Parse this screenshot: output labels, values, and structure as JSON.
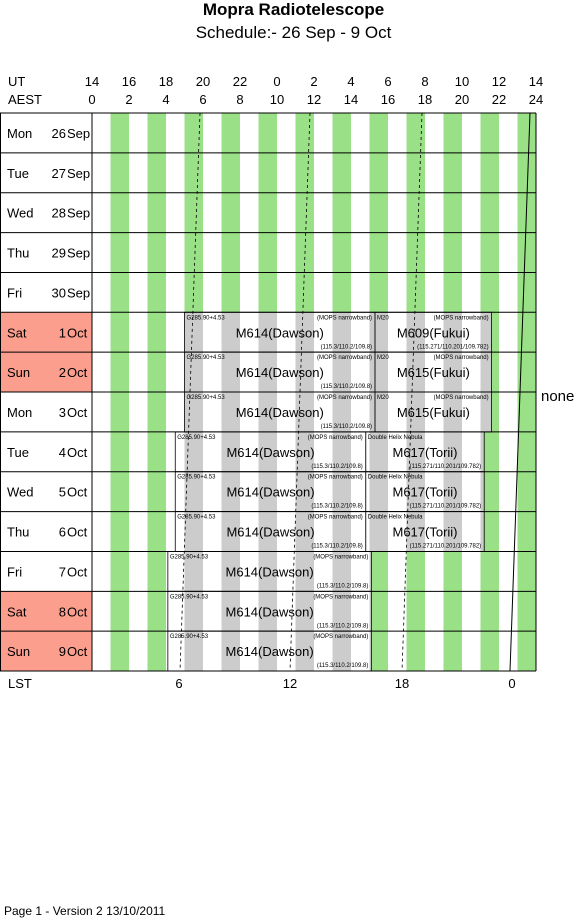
{
  "header": {
    "title": "Mopra Radiotelescope",
    "subtitle": "Schedule:- 26 Sep - 9  Oct",
    "ut_label": "UT",
    "aest_label": "AEST",
    "lst_label": "LST"
  },
  "ut_ticks": [
    "14",
    "16",
    "18",
    "20",
    "22",
    "0",
    "2",
    "4",
    "6",
    "8",
    "10",
    "12",
    "14"
  ],
  "aest_ticks": [
    "0",
    "2",
    "4",
    "6",
    "8",
    "10",
    "12",
    "14",
    "16",
    "18",
    "20",
    "22",
    "24"
  ],
  "lst_ticks": [
    "6",
    "12",
    "18",
    "0"
  ],
  "days": [
    {
      "dow": "Mon",
      "day": "26",
      "month": "Sep",
      "weekend": false
    },
    {
      "dow": "Tue",
      "day": "27",
      "month": "Sep",
      "weekend": false
    },
    {
      "dow": "Wed",
      "day": "28",
      "month": "Sep",
      "weekend": false
    },
    {
      "dow": "Thu",
      "day": "29",
      "month": "Sep",
      "weekend": false
    },
    {
      "dow": "Fri",
      "day": "30",
      "month": "Sep",
      "weekend": false
    },
    {
      "dow": "Sat",
      "day": "1",
      "month": "Oct",
      "weekend": true
    },
    {
      "dow": "Sun",
      "day": "2",
      "month": "Oct",
      "weekend": true
    },
    {
      "dow": "Mon",
      "day": "3",
      "month": "Oct",
      "weekend": false
    },
    {
      "dow": "Tue",
      "day": "4",
      "month": "Oct",
      "weekend": false
    },
    {
      "dow": "Wed",
      "day": "5",
      "month": "Oct",
      "weekend": false
    },
    {
      "dow": "Thu",
      "day": "6",
      "month": "Oct",
      "weekend": false
    },
    {
      "dow": "Fri",
      "day": "7",
      "month": "Oct",
      "weekend": false
    },
    {
      "dow": "Sat",
      "day": "8",
      "month": "Oct",
      "weekend": true
    },
    {
      "dow": "Sun",
      "day": "9",
      "month": "Oct",
      "weekend": true
    }
  ],
  "blocks": [
    {
      "row": 5,
      "start": 5,
      "end": 15.3,
      "source": "G285.90+4.53",
      "mode": "(MOPS narrowband)",
      "project": "M614(Dawson)",
      "freq": "(115.3/110.2/109.8)"
    },
    {
      "row": 5,
      "start": 15.3,
      "end": 21.6,
      "source": "M20",
      "mode": "(MOPS narrowband)",
      "project": "M609(Fukui)",
      "freq": "(115.271/110.201/109.782)"
    },
    {
      "row": 6,
      "start": 5,
      "end": 15.3,
      "source": "G285.90+4.53",
      "mode": "(MOPS narrowband)",
      "project": "M614(Dawson)",
      "freq": "(115.3/110.2/109.8)"
    },
    {
      "row": 6,
      "start": 15.3,
      "end": 21.6,
      "source": "M20",
      "mode": "(MOPS narrowband)",
      "project": "M615(Fukui)",
      "freq": ""
    },
    {
      "row": 7,
      "start": 5,
      "end": 15.3,
      "source": "G285.90+4.53",
      "mode": "(MOPS narrowband)",
      "project": "M614(Dawson)",
      "freq": "(115.3/110.2/109.8)"
    },
    {
      "row": 7,
      "start": 15.3,
      "end": 21.6,
      "source": "M20",
      "mode": "(MOPS narrowband)",
      "project": "M615(Fukui)",
      "freq": ""
    },
    {
      "row": 8,
      "start": 4.5,
      "end": 14.8,
      "source": "G285.90+4.53",
      "mode": "(MOPS narrowband)",
      "project": "M614(Dawson)",
      "freq": "(115.3/110.2/109.8)"
    },
    {
      "row": 8,
      "start": 14.8,
      "end": 21.2,
      "source": "Double Helix Nebula",
      "mode": "",
      "project": "M617(Torii)",
      "freq": "(115.271/110.201/109.782)"
    },
    {
      "row": 9,
      "start": 4.5,
      "end": 14.8,
      "source": "G285.90+4.53",
      "mode": "(MOPS narrowband)",
      "project": "M614(Dawson)",
      "freq": "(115.3/110.2/109.8)"
    },
    {
      "row": 9,
      "start": 14.8,
      "end": 21.2,
      "source": "Double Helix Nebula",
      "mode": "",
      "project": "M617(Torii)",
      "freq": "(115.271/110.201/109.782)"
    },
    {
      "row": 10,
      "start": 4.5,
      "end": 14.8,
      "source": "G285.90+4.53",
      "mode": "(MOPS narrowband)",
      "project": "M614(Dawson)",
      "freq": "(115.3/110.2/109.8)"
    },
    {
      "row": 10,
      "start": 14.8,
      "end": 21.2,
      "source": "Double Helix Nebula",
      "mode": "",
      "project": "M617(Torii)",
      "freq": "(115.271/110.201/109.782)"
    },
    {
      "row": 11,
      "start": 4.1,
      "end": 15.1,
      "source": "G285.90+4.53",
      "mode": "(MOPS narrowband)",
      "project": "M614(Dawson)",
      "freq": "(115.3/110.2/109.8)"
    },
    {
      "row": 12,
      "start": 4.1,
      "end": 15.1,
      "source": "G285.90+4.53",
      "mode": "(MOPS narrowband)",
      "project": "M614(Dawson)",
      "freq": "(115.3/110.2/109.8)"
    },
    {
      "row": 13,
      "start": 4.1,
      "end": 15.1,
      "source": "G285.90+4.53",
      "mode": "(MOPS narrowband)",
      "project": "M614(Dawson)",
      "freq": "(115.3/110.2/109.8)"
    }
  ],
  "none_label": "none",
  "footer": "Page 1 - Version 2  13/10/2011",
  "colors": {
    "green": "#99e087",
    "gray": "#cccccc",
    "weekend": "#fb9e8e",
    "grid": "#000000"
  }
}
